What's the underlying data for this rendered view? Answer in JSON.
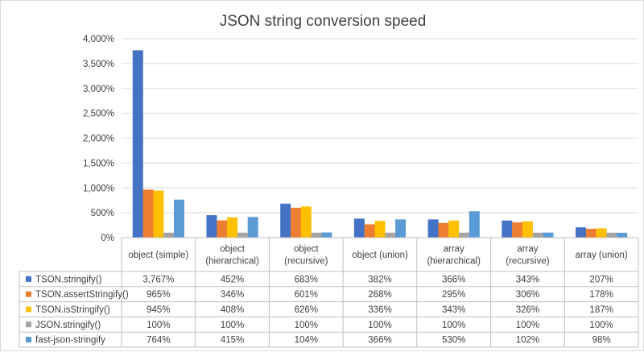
{
  "chart_data": {
    "type": "bar",
    "title": "JSON string conversion speed",
    "xlabel": "",
    "ylabel": "",
    "ylim": [
      0,
      4000
    ],
    "yticks": [
      "0%",
      "500%",
      "1,000%",
      "1,500%",
      "2,000%",
      "2,500%",
      "3,000%",
      "3,500%",
      "4,000%"
    ],
    "grid": true,
    "legend": "data-table",
    "categories": [
      [
        "object (simple)"
      ],
      [
        "object",
        "(hierarchical)"
      ],
      [
        "object",
        "(recursive)"
      ],
      [
        "object (union)"
      ],
      [
        "array",
        "(hierarchical)"
      ],
      [
        "array",
        "(recursive)"
      ],
      [
        "array (union)"
      ]
    ],
    "series": [
      {
        "name": "TSON.stringify()",
        "color": "#4472C4",
        "values": [
          3767,
          452,
          683,
          382,
          366,
          343,
          207
        ],
        "labels": [
          "3,767%",
          "452%",
          "683%",
          "382%",
          "366%",
          "343%",
          "207%"
        ]
      },
      {
        "name": "TSON.assertStringify()",
        "color": "#ED7D31",
        "values": [
          965,
          346,
          601,
          268,
          295,
          306,
          178
        ],
        "labels": [
          "965%",
          "346%",
          "601%",
          "268%",
          "295%",
          "306%",
          "178%"
        ]
      },
      {
        "name": "TSON.isStringify()",
        "color": "#FFC000",
        "values": [
          945,
          408,
          626,
          336,
          343,
          326,
          187
        ],
        "labels": [
          "945%",
          "408%",
          "626%",
          "336%",
          "343%",
          "326%",
          "187%"
        ]
      },
      {
        "name": "JSON.stringify()",
        "color": "#A5A5A5",
        "values": [
          100,
          100,
          100,
          100,
          100,
          100,
          100
        ],
        "labels": [
          "100%",
          "100%",
          "100%",
          "100%",
          "100%",
          "100%",
          "100%"
        ]
      },
      {
        "name": "fast-json-stringify",
        "color": "#5B9BD5",
        "values": [
          764,
          415,
          104,
          366,
          530,
          102,
          98
        ],
        "labels": [
          "764%",
          "415%",
          "104%",
          "366%",
          "530%",
          "102%",
          "98%"
        ]
      }
    ]
  }
}
